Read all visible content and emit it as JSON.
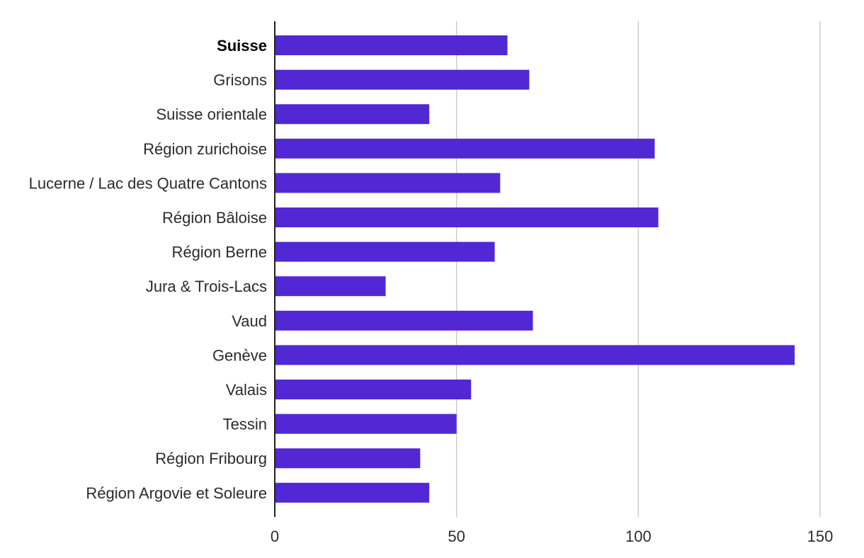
{
  "chart_data": {
    "type": "bar",
    "orientation": "horizontal",
    "categories": [
      "Suisse",
      "Grisons",
      "Suisse orientale",
      "Région zurichoise",
      "Lucerne / Lac des Quatre Cantons",
      "Région Bâloise",
      "Région Berne",
      "Jura & Trois-Lacs",
      "Vaud",
      "Genève",
      "Valais",
      "Tessin",
      "Région Fribourg",
      "Région Argovie et Soleure"
    ],
    "values": [
      64,
      70,
      42.5,
      104.5,
      62,
      105.5,
      60.5,
      30.5,
      71,
      143,
      54,
      50,
      40,
      42.5
    ],
    "bold_categories": [
      "Suisse"
    ],
    "xlim": [
      0,
      150
    ],
    "xticks": [
      0,
      50,
      100,
      150
    ],
    "grid": true,
    "legend": "none",
    "title": "",
    "xlabel": "",
    "ylabel": "",
    "colors": {
      "bar": "#5128d4",
      "grid": "#cccccc",
      "axis": "#222222",
      "text": "#2b2b2b",
      "bold_text": "#000000"
    }
  }
}
